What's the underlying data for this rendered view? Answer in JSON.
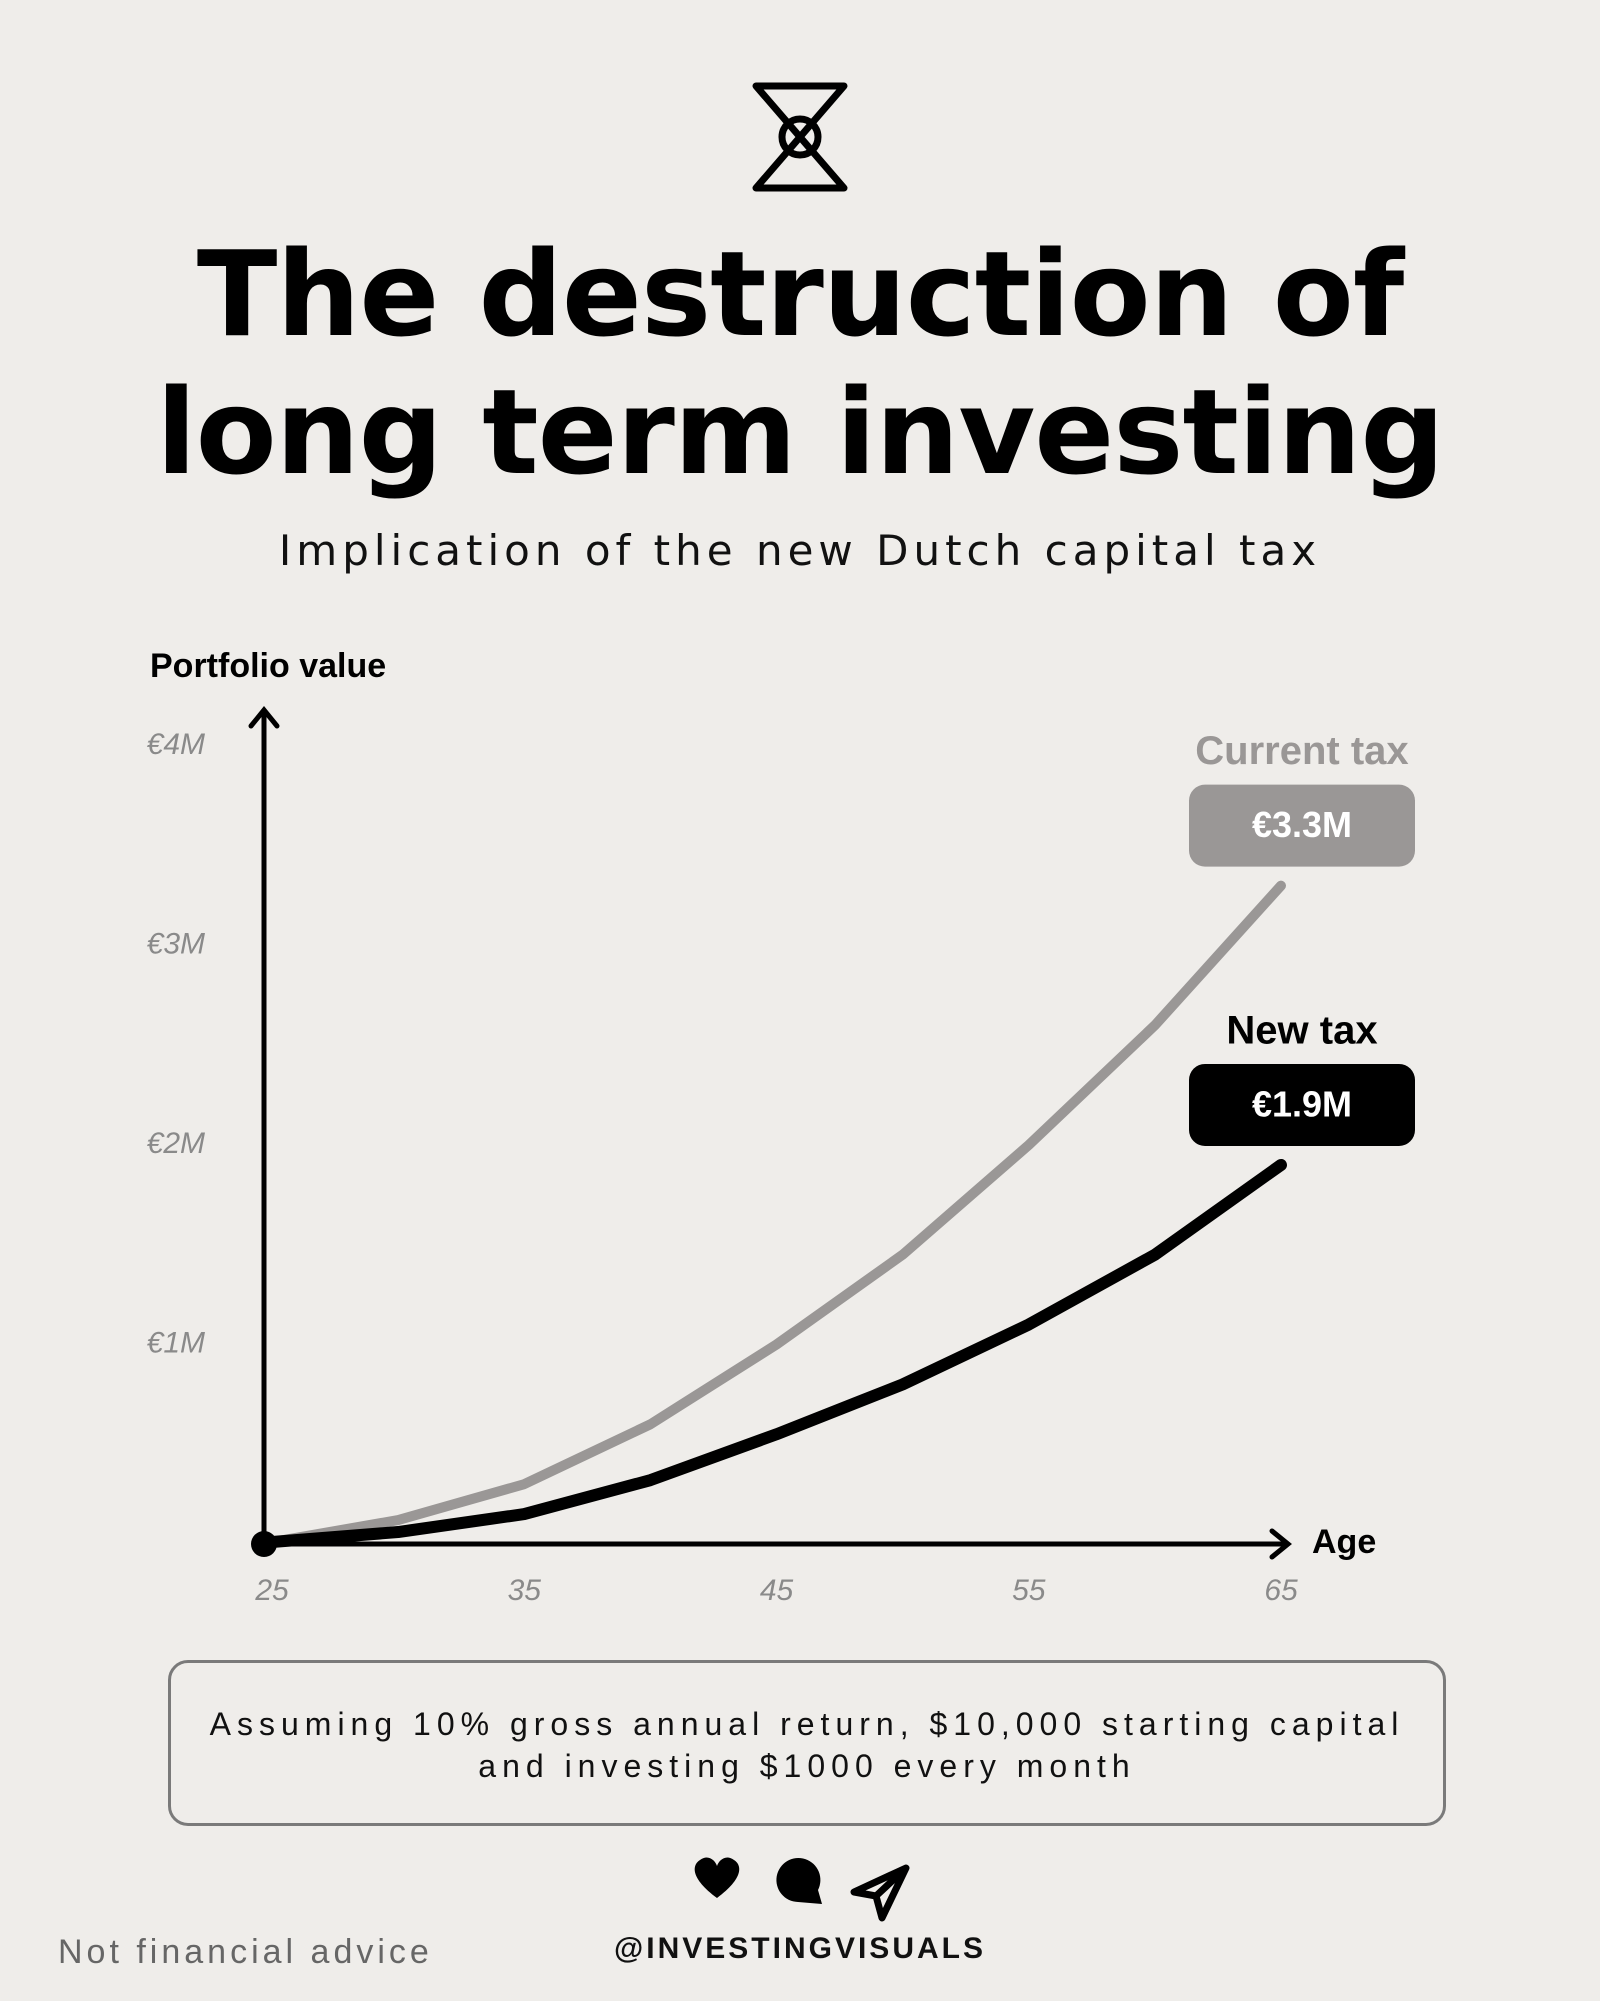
{
  "chart_data": {
    "type": "line",
    "title": "The destruction of long term investing",
    "subtitle": "Implication of the new Dutch capital tax",
    "y_label": "Portfolio value",
    "x_label": "Age",
    "x": [
      25,
      30,
      35,
      40,
      45,
      50,
      55,
      60,
      65
    ],
    "series": [
      {
        "name": "Current tax",
        "color": "#9a9796",
        "values": [
          10000,
          120000,
          300000,
          600000,
          1000000,
          1450000,
          2000000,
          2600000,
          3300000
        ],
        "value_labels": [
          null,
          null,
          null,
          null,
          null,
          null,
          null,
          null,
          "€3.3M"
        ]
      },
      {
        "name": "New tax",
        "color": "#000000",
        "values": [
          10000,
          60000,
          150000,
          320000,
          550000,
          800000,
          1100000,
          1450000,
          1900000
        ],
        "value_labels": [
          null,
          null,
          null,
          null,
          null,
          null,
          null,
          null,
          "€1.9M"
        ]
      }
    ],
    "xlim": [
      25,
      65
    ],
    "xticks": [
      25,
      35,
      45,
      55,
      65
    ],
    "ylim": [
      0,
      4000000
    ],
    "yticks": [
      {
        "value": 1000000,
        "label": "€1M"
      },
      {
        "value": 2000000,
        "label": "€2M"
      },
      {
        "value": 3000000,
        "label": "€3M"
      },
      {
        "value": 4000000,
        "label": "€4M"
      }
    ],
    "grid": false
  },
  "note": "Assuming 10% gross annual return, $10,000 starting capital and investing $1000 every month",
  "handle": "@INVESTINGVISUALS",
  "disclaimer": "Not financial advice"
}
